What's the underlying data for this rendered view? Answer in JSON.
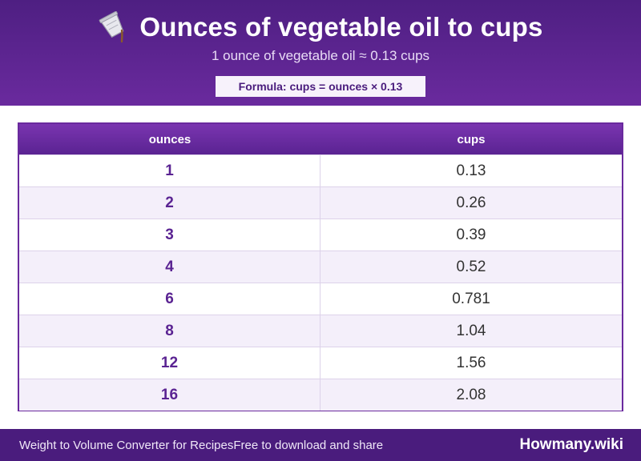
{
  "header": {
    "title": "Ounces of vegetable oil to cups",
    "icon": "oil-pouring-cup-icon",
    "subtitle": "1 ounce of vegetable oil ≈ 0.13 cups",
    "formula": "Formula: cups = ounces × 0.13"
  },
  "table": {
    "columns": [
      "ounces",
      "cups"
    ],
    "rows": [
      {
        "ounces": "1",
        "cups": "0.13"
      },
      {
        "ounces": "2",
        "cups": "0.26"
      },
      {
        "ounces": "3",
        "cups": "0.39"
      },
      {
        "ounces": "4",
        "cups": "0.52"
      },
      {
        "ounces": "6",
        "cups": "0.781"
      },
      {
        "ounces": "8",
        "cups": "1.04"
      },
      {
        "ounces": "12",
        "cups": "1.56"
      },
      {
        "ounces": "16",
        "cups": "2.08"
      }
    ]
  },
  "footer": {
    "left_text": "Weight to Volume Converter for Recipes",
    "left_text_2": "Free to download and share",
    "brand": "Howmany.wiki"
  },
  "colors": {
    "header_purple": "#4e1f82",
    "accent_purple": "#6a2a9e",
    "footer_purple": "#4a1c7d",
    "row_alt": "#f4effa"
  }
}
